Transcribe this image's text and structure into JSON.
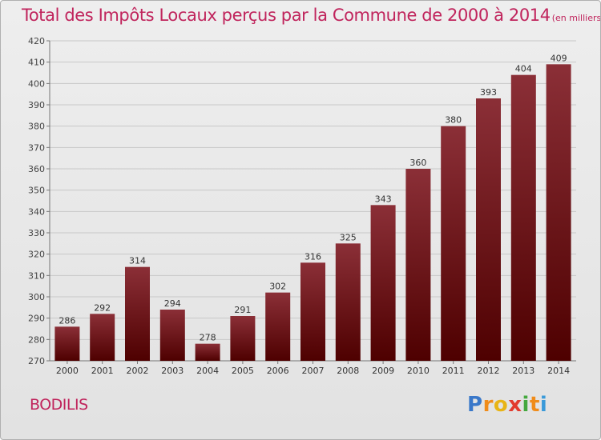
{
  "chart_data": {
    "type": "bar",
    "title": "Total des Impôts Locaux perçus par la Commune de 2000 à 2014",
    "unit_note": "(en milliers d'€)",
    "categories": [
      "2000",
      "2001",
      "2002",
      "2003",
      "2004",
      "2005",
      "2006",
      "2007",
      "2008",
      "2009",
      "2010",
      "2011",
      "2012",
      "2013",
      "2014"
    ],
    "values": [
      286,
      292,
      314,
      294,
      278,
      291,
      302,
      316,
      325,
      343,
      360,
      380,
      393,
      404,
      409
    ],
    "value_labels": [
      "286",
      "292",
      "314",
      "294",
      "278",
      "291",
      "302",
      "316",
      "325",
      "343",
      "360",
      "380",
      "393",
      "404",
      "409"
    ],
    "yticks": [
      "270",
      "280",
      "290",
      "300",
      "310",
      "320",
      "330",
      "340",
      "350",
      "360",
      "370",
      "380",
      "390",
      "400",
      "410",
      "420"
    ],
    "ylim": [
      270,
      420
    ],
    "xlabel": "",
    "ylabel": "",
    "grid": true,
    "bar_color_top": "#8b2f37",
    "bar_color_bottom": "#4e0000"
  },
  "commune": "BODILIS",
  "logo": {
    "letters": [
      "P",
      "r",
      "o",
      "x",
      "i",
      "t",
      "i"
    ],
    "colors": [
      "#3a78c9",
      "#f08c1a",
      "#e8b415",
      "#e23b2e",
      "#44a83e",
      "#f08c1a",
      "#3a9ad9"
    ]
  }
}
